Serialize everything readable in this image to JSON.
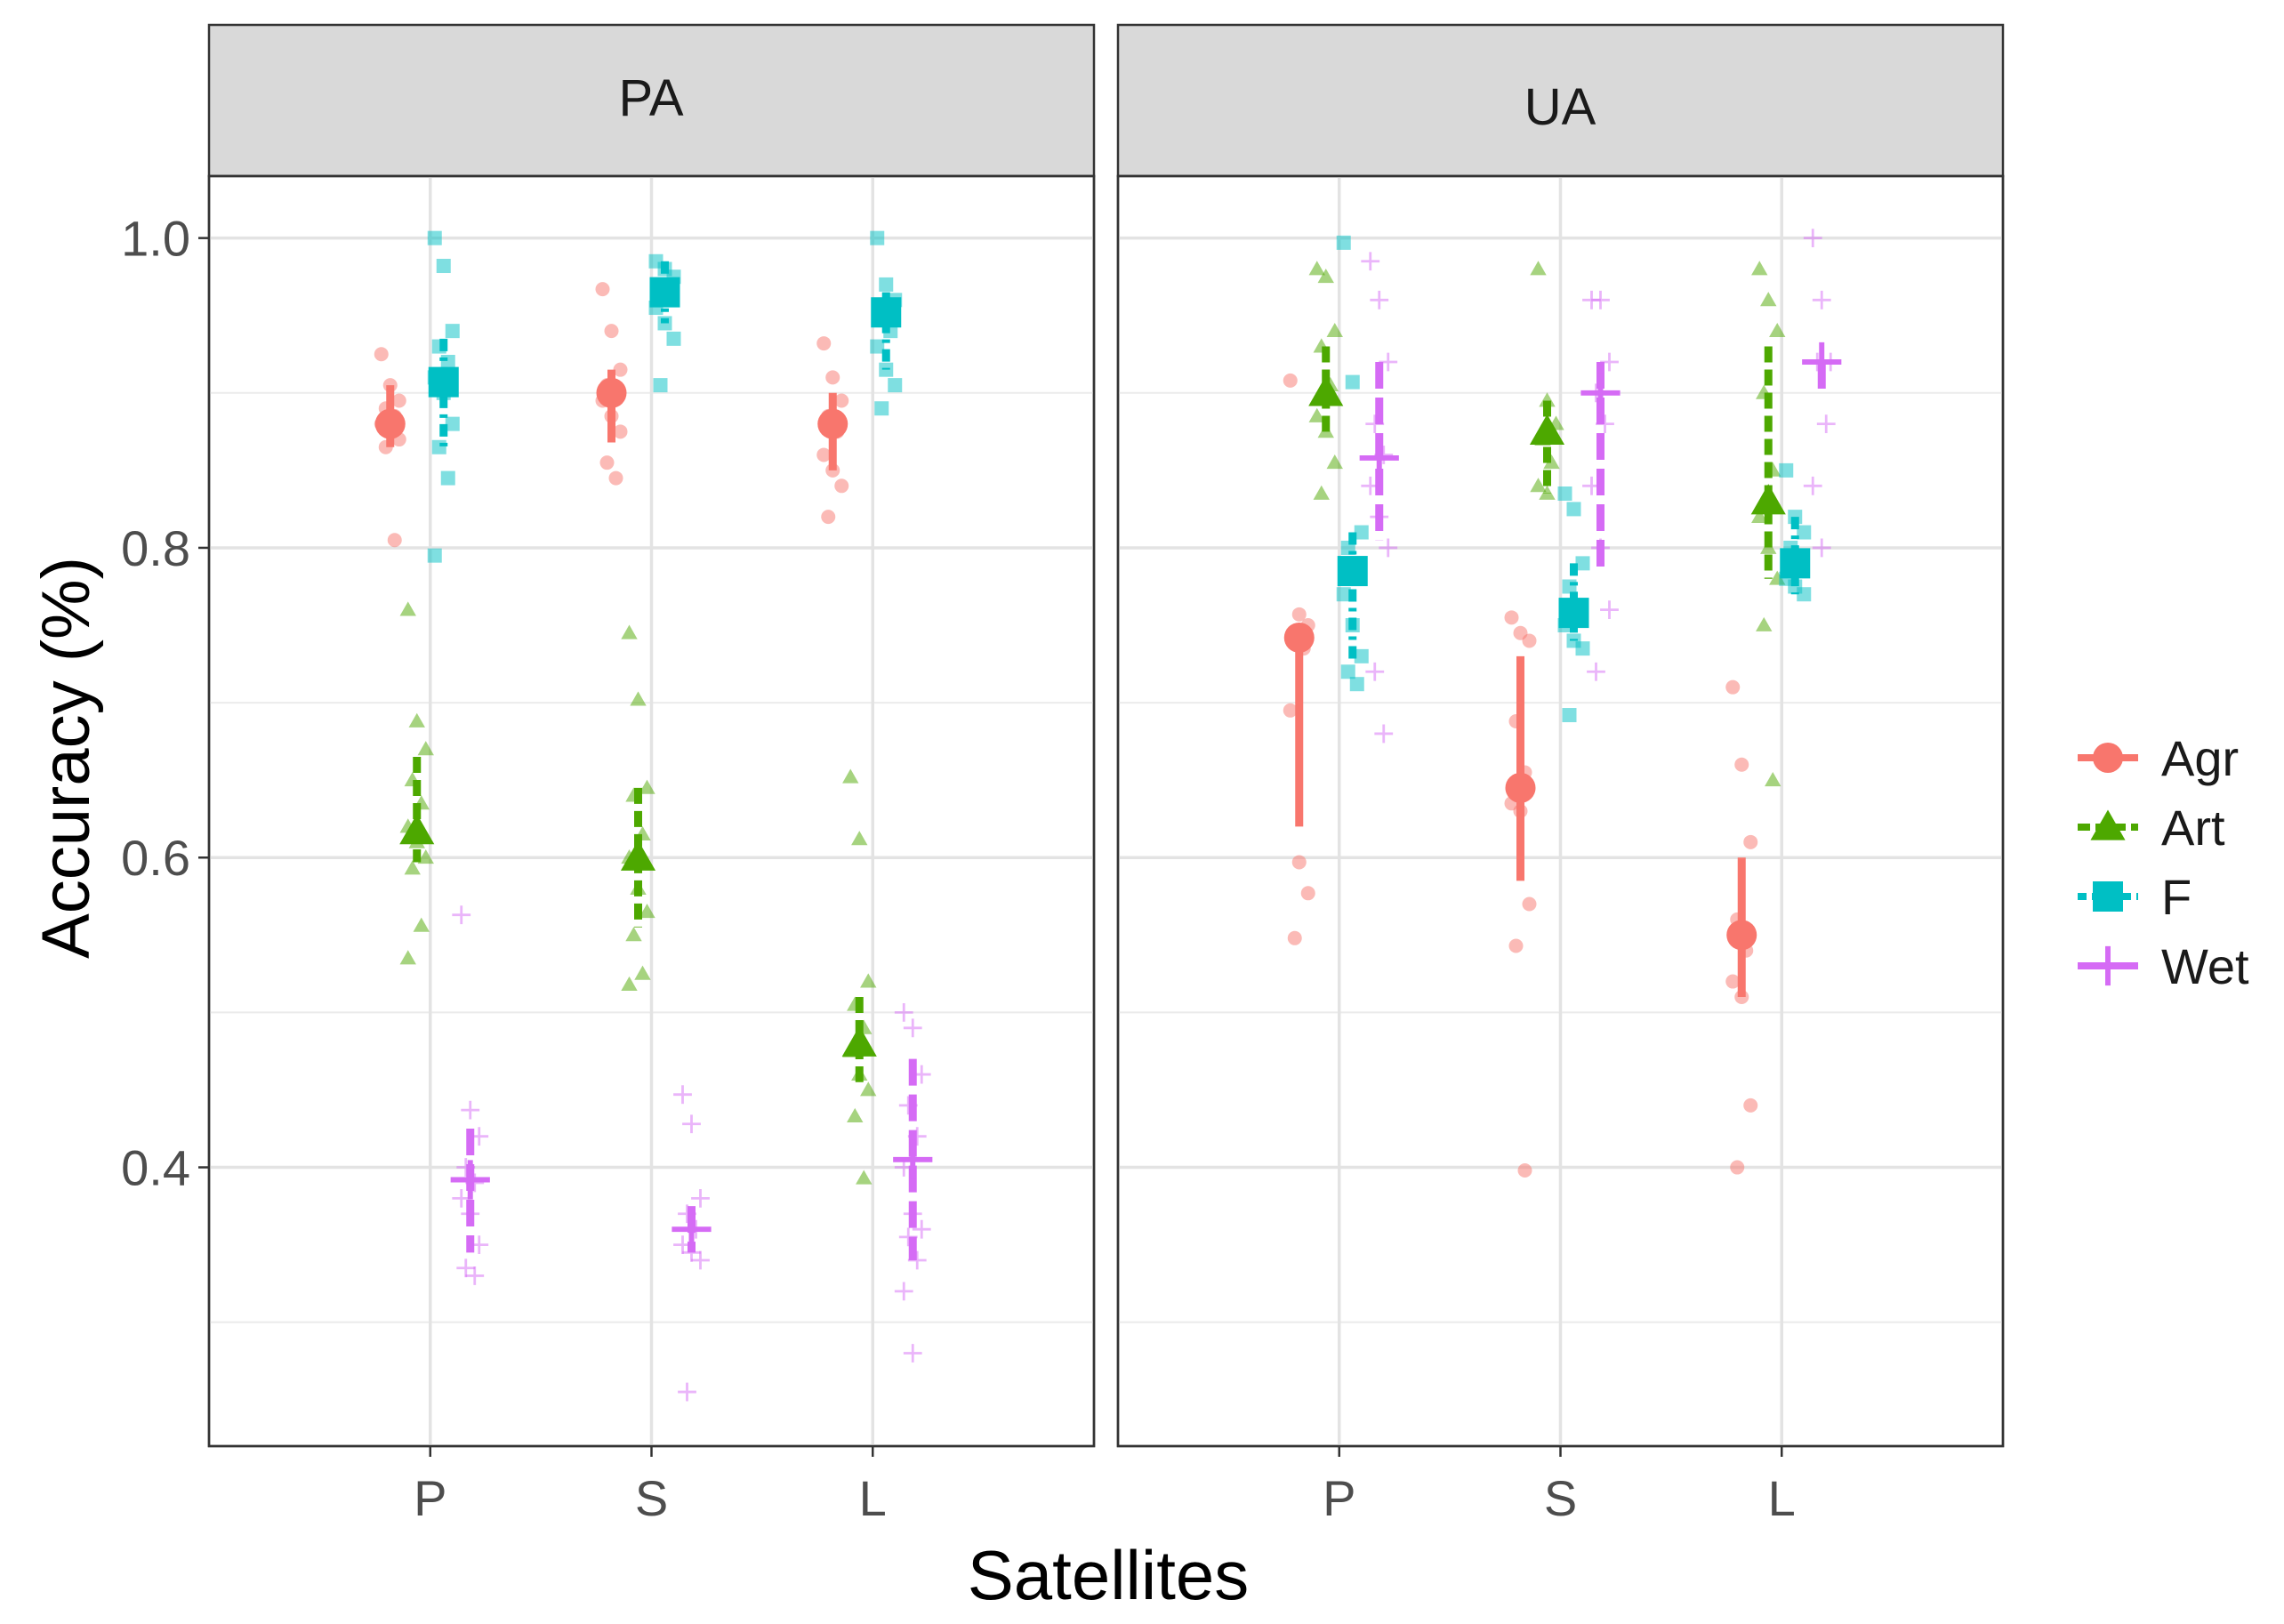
{
  "chart_data": {
    "type": "scatter",
    "xlabel": "Satellites",
    "ylabel": "Accuracy (%)",
    "categories": [
      "P",
      "S",
      "L"
    ],
    "yticks": [
      "0.4",
      "0.6",
      "0.8",
      "1.0"
    ],
    "ylim": [
      0.22,
      1.04
    ],
    "grid": true,
    "legend_position": "right",
    "colors": {
      "Agr": "#F8766D",
      "Art": "#4DA800",
      "F": "#00BFC4",
      "Wet": "#D56BF5"
    },
    "legend": [
      {
        "name": "Agr",
        "shape": "circle"
      },
      {
        "name": "Art",
        "shape": "triangle"
      },
      {
        "name": "F",
        "shape": "square"
      },
      {
        "name": "Wet",
        "shape": "cross"
      }
    ],
    "panels": [
      {
        "title": "PA",
        "groups": [
          {
            "cat": "P",
            "series": "Agr",
            "mean": 0.88,
            "lo": 0.865,
            "hi": 0.905,
            "points": [
              0.925,
              0.905,
              0.895,
              0.89,
              0.885,
              0.88,
              0.875,
              0.87,
              0.865,
              0.805
            ]
          },
          {
            "cat": "P",
            "series": "Art",
            "mean": 0.617,
            "lo": 0.597,
            "hi": 0.665,
            "points": [
              0.76,
              0.688,
              0.67,
              0.65,
              0.635,
              0.62,
              0.61,
              0.6,
              0.593,
              0.556,
              0.535
            ]
          },
          {
            "cat": "P",
            "series": "F",
            "mean": 0.907,
            "lo": 0.865,
            "hi": 0.935,
            "points": [
              1.0,
              0.982,
              0.94,
              0.93,
              0.92,
              0.91,
              0.9,
              0.88,
              0.865,
              0.845,
              0.795
            ]
          },
          {
            "cat": "P",
            "series": "Wet",
            "mean": 0.392,
            "lo": 0.345,
            "hi": 0.425,
            "points": [
              0.563,
              0.437,
              0.42,
              0.4,
              0.39,
              0.38,
              0.37,
              0.35,
              0.335,
              0.33
            ]
          },
          {
            "cat": "S",
            "series": "Agr",
            "mean": 0.9,
            "lo": 0.868,
            "hi": 0.915,
            "points": [
              0.967,
              0.94,
              0.915,
              0.905,
              0.9,
              0.895,
              0.885,
              0.875,
              0.855,
              0.845
            ]
          },
          {
            "cat": "S",
            "series": "Art",
            "mean": 0.6,
            "lo": 0.555,
            "hi": 0.645,
            "points": [
              0.745,
              0.702,
              0.645,
              0.64,
              0.615,
              0.6,
              0.58,
              0.565,
              0.55,
              0.525,
              0.518
            ]
          },
          {
            "cat": "S",
            "series": "F",
            "mean": 0.965,
            "lo": 0.945,
            "hi": 0.985,
            "points": [
              0.985,
              0.98,
              0.975,
              0.97,
              0.96,
              0.955,
              0.945,
              0.935,
              0.905
            ]
          },
          {
            "cat": "S",
            "series": "Wet",
            "mean": 0.36,
            "lo": 0.345,
            "hi": 0.375,
            "points": [
              0.447,
              0.428,
              0.38,
              0.37,
              0.36,
              0.35,
              0.345,
              0.34,
              0.255
            ]
          },
          {
            "cat": "L",
            "series": "Agr",
            "mean": 0.88,
            "lo": 0.85,
            "hi": 0.9,
            "points": [
              0.932,
              0.91,
              0.895,
              0.885,
              0.875,
              0.86,
              0.85,
              0.84,
              0.82
            ]
          },
          {
            "cat": "L",
            "series": "Art",
            "mean": 0.48,
            "lo": 0.455,
            "hi": 0.51,
            "points": [
              0.652,
              0.612,
              0.52,
              0.505,
              0.49,
              0.475,
              0.46,
              0.45,
              0.433,
              0.393
            ]
          },
          {
            "cat": "L",
            "series": "F",
            "mean": 0.952,
            "lo": 0.915,
            "hi": 0.965,
            "points": [
              1.0,
              0.97,
              0.96,
              0.95,
              0.94,
              0.93,
              0.915,
              0.905,
              0.89
            ]
          },
          {
            "cat": "L",
            "series": "Wet",
            "mean": 0.405,
            "lo": 0.34,
            "hi": 0.47,
            "points": [
              0.5,
              0.49,
              0.46,
              0.44,
              0.42,
              0.4,
              0.37,
              0.36,
              0.355,
              0.34,
              0.32,
              0.28
            ]
          }
        ]
      },
      {
        "title": "UA",
        "groups": [
          {
            "cat": "P",
            "series": "Agr",
            "mean": 0.742,
            "lo": 0.62,
            "hi": 0.742,
            "points": [
              0.908,
              0.757,
              0.75,
              0.74,
              0.735,
              0.695,
              0.597,
              0.577,
              0.548
            ]
          },
          {
            "cat": "P",
            "series": "Art",
            "mean": 0.9,
            "lo": 0.875,
            "hi": 0.93,
            "points": [
              0.98,
              0.975,
              0.94,
              0.93,
              0.905,
              0.885,
              0.875,
              0.855,
              0.835
            ]
          },
          {
            "cat": "P",
            "series": "F",
            "mean": 0.785,
            "lo": 0.725,
            "hi": 0.81,
            "points": [
              0.997,
              0.907,
              0.81,
              0.8,
              0.79,
              0.77,
              0.75,
              0.73,
              0.72,
              0.712
            ]
          },
          {
            "cat": "P",
            "series": "Wet",
            "mean": 0.858,
            "lo": 0.805,
            "hi": 0.92,
            "points": [
              0.985,
              0.96,
              0.92,
              0.88,
              0.86,
              0.84,
              0.82,
              0.8,
              0.72,
              0.68
            ]
          },
          {
            "cat": "S",
            "series": "Agr",
            "mean": 0.645,
            "lo": 0.585,
            "hi": 0.73,
            "points": [
              0.755,
              0.745,
              0.74,
              0.688,
              0.655,
              0.635,
              0.63,
              0.57,
              0.543,
              0.398
            ]
          },
          {
            "cat": "S",
            "series": "Art",
            "mean": 0.875,
            "lo": 0.835,
            "hi": 0.895,
            "points": [
              0.98,
              0.895,
              0.88,
              0.87,
              0.855,
              0.84,
              0.835
            ]
          },
          {
            "cat": "S",
            "series": "F",
            "mean": 0.758,
            "lo": 0.74,
            "hi": 0.79,
            "points": [
              0.835,
              0.825,
              0.79,
              0.775,
              0.76,
              0.75,
              0.74,
              0.735,
              0.692
            ]
          },
          {
            "cat": "S",
            "series": "Wet",
            "mean": 0.9,
            "lo": 0.785,
            "hi": 0.92,
            "points": [
              0.96,
              0.96,
              0.92,
              0.9,
              0.88,
              0.84,
              0.8,
              0.76,
              0.72
            ]
          },
          {
            "cat": "L",
            "series": "Agr",
            "mean": 0.55,
            "lo": 0.51,
            "hi": 0.6,
            "points": [
              0.71,
              0.66,
              0.61,
              0.56,
              0.54,
              0.52,
              0.51,
              0.44,
              0.4
            ]
          },
          {
            "cat": "L",
            "series": "Art",
            "mean": 0.83,
            "lo": 0.78,
            "hi": 0.93,
            "points": [
              0.98,
              0.96,
              0.94,
              0.9,
              0.85,
              0.82,
              0.8,
              0.78,
              0.75,
              0.65
            ]
          },
          {
            "cat": "L",
            "series": "F",
            "mean": 0.79,
            "lo": 0.77,
            "hi": 0.82,
            "points": [
              0.85,
              0.82,
              0.81,
              0.8,
              0.79,
              0.78,
              0.775,
              0.77
            ]
          },
          {
            "cat": "L",
            "series": "Wet",
            "mean": 0.92,
            "lo": 0.9,
            "hi": 0.92,
            "points": [
              1.0,
              0.96,
              0.92,
              0.92,
              0.88,
              0.84,
              0.8
            ]
          }
        ]
      }
    ]
  }
}
